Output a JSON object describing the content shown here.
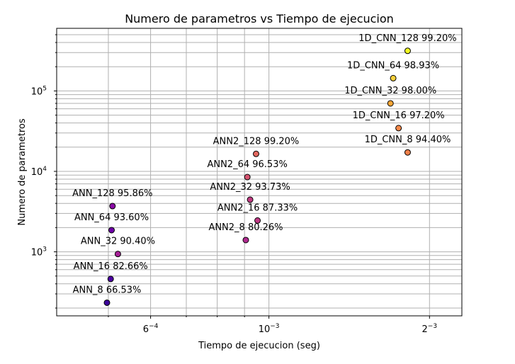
{
  "chart_data": {
    "type": "scatter",
    "title": "Numero de parametros vs Tiempo de ejecucion",
    "xlabel": "Tiempo de ejecucion (seg)",
    "ylabel": "Numero de parametros",
    "x_scale": "log",
    "y_scale": "log",
    "xlim": [
      0.0004,
      0.0023
    ],
    "ylim": [
      160,
      600000
    ],
    "grid": true,
    "grid_minor": true,
    "colormap": "plasma",
    "x_ticks": [
      {
        "value": 0.0006,
        "mant": "6",
        "exp": "−4"
      },
      {
        "value": 0.001,
        "mant": "10",
        "exp": "−3"
      },
      {
        "value": 0.002,
        "mant": "2",
        "exp": "−3"
      }
    ],
    "y_ticks": [
      {
        "value": 1000,
        "mant": "10",
        "exp": "3"
      },
      {
        "value": 10000,
        "mant": "10",
        "exp": "4"
      },
      {
        "value": 100000,
        "mant": "10",
        "exp": "5"
      }
    ],
    "points": [
      {
        "label": "ANN_8 66.53%",
        "x": 0.000497,
        "y": 233,
        "color": "#3d049b"
      },
      {
        "label": "ANN_16 82.66%",
        "x": 0.000505,
        "y": 460,
        "color": "#4c02a1"
      },
      {
        "label": "ANN_32 90.40%",
        "x": 0.000521,
        "y": 940,
        "color": "#a72197"
      },
      {
        "label": "ANN_64 93.60%",
        "x": 0.000507,
        "y": 1860,
        "color": "#6e00a8"
      },
      {
        "label": "ANN_128 95.86%",
        "x": 0.000509,
        "y": 3700,
        "color": "#8b0aa5"
      },
      {
        "label": "ANN2_8 80.26%",
        "x": 0.000905,
        "y": 1400,
        "color": "#b12a90"
      },
      {
        "label": "ANN2_16 87.33%",
        "x": 0.000952,
        "y": 2450,
        "color": "#bf3984"
      },
      {
        "label": "ANN2_32 93.73%",
        "x": 0.000922,
        "y": 4450,
        "color": "#c13a82"
      },
      {
        "label": "ANN2_64 96.53%",
        "x": 0.000911,
        "y": 8500,
        "color": "#d5536f"
      },
      {
        "label": "ANN2_128 99.20%",
        "x": 0.000946,
        "y": 16500,
        "color": "#e3685f"
      },
      {
        "label": "1D_CNN_8 94.40%",
        "x": 0.00182,
        "y": 17200,
        "color": "#f0804a"
      },
      {
        "label": "1D_CNN_16 97.20%",
        "x": 0.00175,
        "y": 34500,
        "color": "#f48849"
      },
      {
        "label": "1D_CNN_32 98.00%",
        "x": 0.00169,
        "y": 70000,
        "color": "#fca636"
      },
      {
        "label": "1D_CNN_64 98.93%",
        "x": 0.00171,
        "y": 144000,
        "color": "#f7d13c"
      },
      {
        "label": "1D_CNN_128 99.20%",
        "x": 0.00182,
        "y": 315000,
        "color": "#f0f921"
      }
    ]
  }
}
